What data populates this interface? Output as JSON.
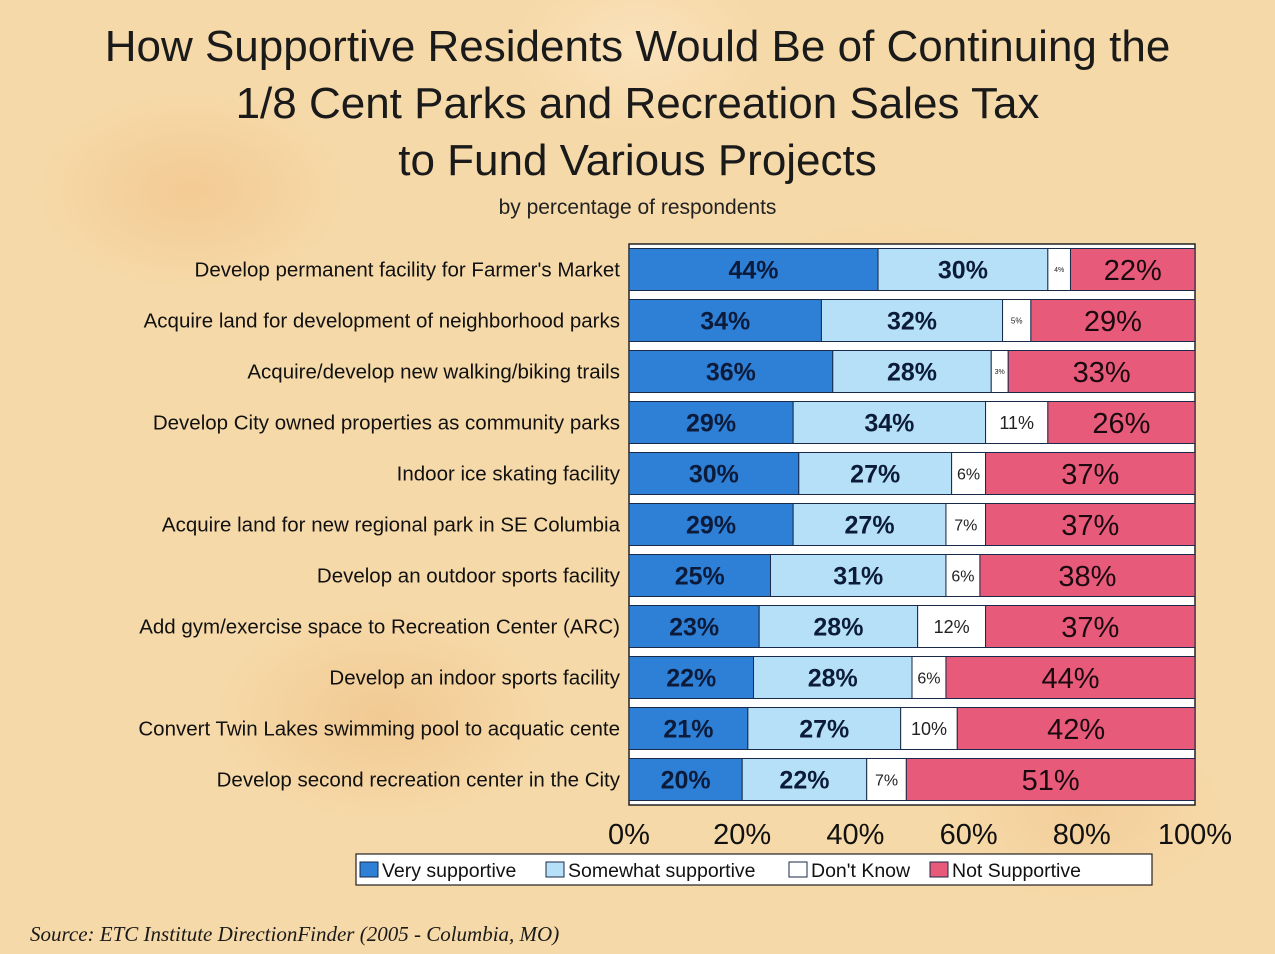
{
  "title_lines": [
    "How Supportive Residents Would Be of Continuing the",
    "1/8 Cent Parks and Recreation Sales Tax",
    "to Fund Various Projects"
  ],
  "subtitle": "by percentage of respondents",
  "source": "Source:  ETC Institute DirectionFinder (2005 - Columbia, MO)",
  "chart_data": {
    "type": "bar",
    "orientation": "horizontal",
    "stacked": true,
    "title": "How Supportive Residents Would Be of Continuing the 1/8 Cent Parks and Recreation Sales Tax to Fund Various Projects",
    "subtitle": "by percentage of respondents",
    "categories": [
      "Develop permanent facility for Farmer's Market",
      "Acquire land for development of neighborhood parks",
      "Acquire/develop new walking/biking trails",
      "Develop City owned properties as community parks",
      "Indoor ice skating facility",
      "Acquire land for new regional park in SE Columbia",
      "Develop an outdoor sports facility",
      "Add gym/exercise space to Recreation Center (ARC)",
      "Develop an indoor sports facility",
      "Convert Twin Lakes swimming pool to acquatic cente",
      "Develop second recreation center in the City"
    ],
    "series": [
      {
        "name": "Very supportive",
        "color": "#2e7fd6",
        "values": [
          44,
          34,
          36,
          29,
          30,
          29,
          25,
          23,
          22,
          21,
          20
        ]
      },
      {
        "name": "Somewhat supportive",
        "color": "#b5e0f7",
        "values": [
          30,
          32,
          28,
          34,
          27,
          27,
          31,
          28,
          28,
          27,
          22
        ]
      },
      {
        "name": "Don't Know",
        "color": "#ffffff",
        "values": [
          4,
          5,
          3,
          11,
          6,
          7,
          6,
          12,
          6,
          10,
          7
        ]
      },
      {
        "name": "Not Supportive",
        "color": "#e85a7a",
        "values": [
          22,
          29,
          33,
          26,
          37,
          37,
          38,
          37,
          44,
          42,
          51
        ]
      }
    ],
    "xlim": [
      0,
      100
    ],
    "xticks": [
      "0%",
      "20%",
      "40%",
      "60%",
      "80%",
      "100%"
    ],
    "legend_position": "bottom",
    "value_suffix": "%"
  }
}
